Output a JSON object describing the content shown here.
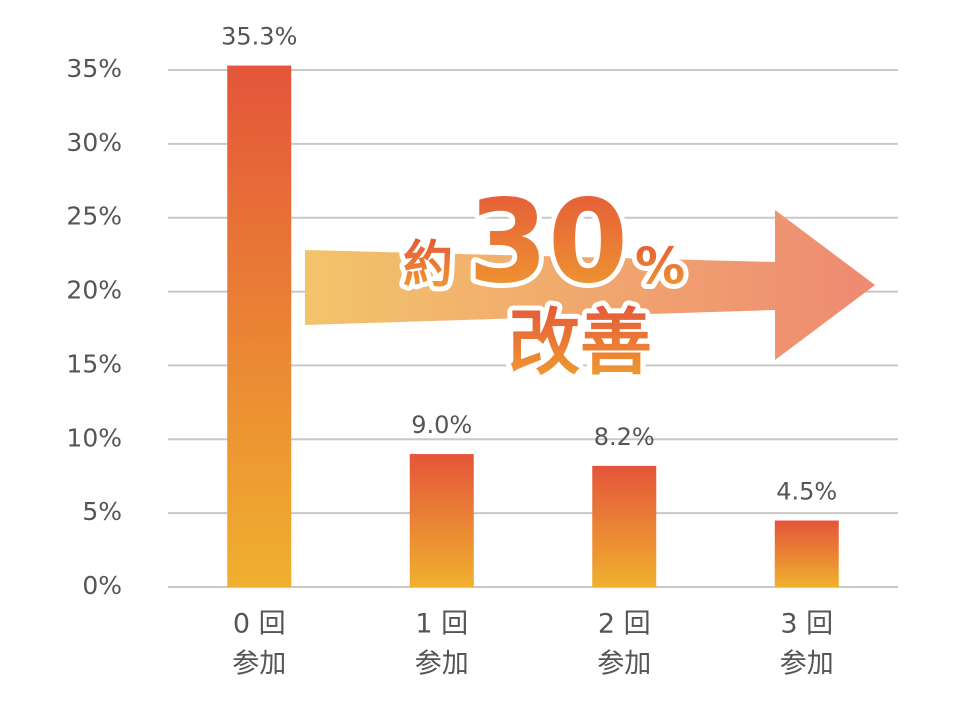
{
  "chart_data": {
    "type": "bar",
    "categories": [
      [
        "0 回",
        "参加"
      ],
      [
        "1 回",
        "参加"
      ],
      [
        "2 回",
        "参加"
      ],
      [
        "3 回",
        "参加"
      ]
    ],
    "values": [
      35.3,
      9.0,
      8.2,
      4.5
    ],
    "value_labels": [
      "35.3%",
      "9.0%",
      "8.2%",
      "4.5%"
    ],
    "color": [
      "#e4553a",
      "#f0b02f"
    ],
    "ylim": [
      0,
      35
    ],
    "yticks": [
      {
        "value": 0,
        "label": "0%"
      },
      {
        "value": 5,
        "label": "5%"
      },
      {
        "value": 10,
        "label": "10%"
      },
      {
        "value": 15,
        "label": "15%"
      },
      {
        "value": 20,
        "label": "20%"
      },
      {
        "value": 25,
        "label": "25%"
      },
      {
        "value": 30,
        "label": "30%"
      },
      {
        "value": 35,
        "label": "35%"
      }
    ],
    "grid": true,
    "annotation": {
      "prefix": "約",
      "number": "30",
      "unit": "%",
      "text": "改善"
    }
  }
}
